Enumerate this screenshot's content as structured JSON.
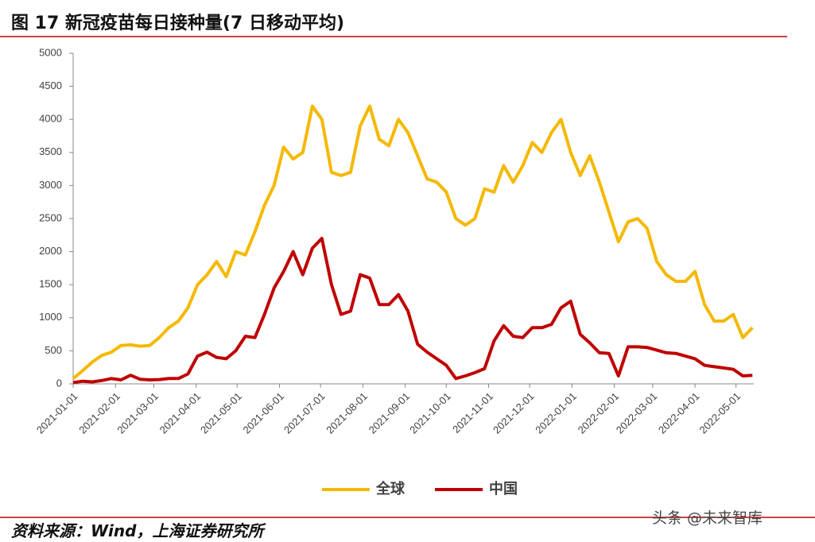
{
  "chart_data": {
    "type": "line",
    "title": "图 17 新冠疫苗每日接种量(7 日移动平均)",
    "source": "资料来源：Wind，上海证券研究所",
    "watermark": "头条 @未来智库",
    "x": [
      "2021-01-01",
      "2021-01-08",
      "2021-01-15",
      "2021-01-22",
      "2021-01-29",
      "2021-02-05",
      "2021-02-12",
      "2021-02-19",
      "2021-02-26",
      "2021-03-05",
      "2021-03-12",
      "2021-03-19",
      "2021-03-26",
      "2021-04-02",
      "2021-04-09",
      "2021-04-16",
      "2021-04-23",
      "2021-04-30",
      "2021-05-07",
      "2021-05-14",
      "2021-05-21",
      "2021-05-28",
      "2021-06-04",
      "2021-06-11",
      "2021-06-18",
      "2021-06-25",
      "2021-07-02",
      "2021-07-09",
      "2021-07-16",
      "2021-07-23",
      "2021-07-30",
      "2021-08-06",
      "2021-08-13",
      "2021-08-20",
      "2021-08-27",
      "2021-09-03",
      "2021-09-10",
      "2021-09-17",
      "2021-09-24",
      "2021-10-01",
      "2021-10-08",
      "2021-10-15",
      "2021-10-22",
      "2021-10-29",
      "2021-11-05",
      "2021-11-12",
      "2021-11-19",
      "2021-11-26",
      "2021-12-03",
      "2021-12-10",
      "2021-12-17",
      "2021-12-24",
      "2021-12-31",
      "2022-01-07",
      "2022-01-14",
      "2022-01-21",
      "2022-01-28",
      "2022-02-04",
      "2022-02-11",
      "2022-02-18",
      "2022-02-25",
      "2022-03-04",
      "2022-03-11",
      "2022-03-18",
      "2022-03-25",
      "2022-04-01",
      "2022-04-08",
      "2022-04-15",
      "2022-04-22",
      "2022-04-29",
      "2022-05-06",
      "2022-05-13"
    ],
    "series": [
      {
        "name": "全球",
        "color": "#f5b800",
        "values": [
          80,
          200,
          330,
          430,
          480,
          580,
          590,
          570,
          580,
          700,
          850,
          950,
          1150,
          1500,
          1650,
          1850,
          1620,
          2000,
          1950,
          2300,
          2700,
          3000,
          3580,
          3400,
          3500,
          4200,
          4000,
          3200,
          3150,
          3200,
          3900,
          4200,
          3700,
          3600,
          4000,
          3800,
          3450,
          3100,
          3050,
          2900,
          2500,
          2400,
          2500,
          2950,
          2900,
          3300,
          3050,
          3300,
          3650,
          3500,
          3800,
          4000,
          3500,
          3150,
          3450,
          3050,
          2600,
          2150,
          2450,
          2500,
          2350,
          1850,
          1650,
          1550,
          1550,
          1700,
          1200,
          950,
          950,
          1050,
          700,
          850
        ]
      },
      {
        "name": "中国",
        "color": "#c00000",
        "values": [
          20,
          40,
          30,
          50,
          80,
          60,
          130,
          70,
          60,
          65,
          80,
          80,
          150,
          420,
          480,
          400,
          380,
          500,
          720,
          700,
          1050,
          1450,
          1700,
          2000,
          1650,
          2050,
          2200,
          1500,
          1050,
          1100,
          1650,
          1600,
          1200,
          1200,
          1350,
          1100,
          600,
          480,
          380,
          280,
          80,
          120,
          170,
          230,
          650,
          880,
          720,
          700,
          850,
          850,
          900,
          1150,
          1250,
          750,
          620,
          470,
          460,
          120,
          560,
          560,
          550,
          510,
          470,
          460,
          420,
          380,
          280,
          260,
          240,
          220,
          120,
          130
        ]
      }
    ],
    "xlim": [
      "2021-01-01",
      "2022-05-14"
    ],
    "xticks": [
      "2021-01-01",
      "2021-02-01",
      "2021-03-01",
      "2021-04-01",
      "2021-05-01",
      "2021-06-01",
      "2021-07-01",
      "2021-08-01",
      "2021-09-01",
      "2021-10-01",
      "2021-11-01",
      "2021-12-01",
      "2022-01-01",
      "2022-02-01",
      "2022-03-01",
      "2022-04-01",
      "2022-05-01"
    ],
    "ylim": [
      0,
      5000
    ],
    "yticks": [
      0,
      500,
      1000,
      1500,
      2000,
      2500,
      3000,
      3500,
      4000,
      4500,
      5000
    ],
    "grid": false,
    "legend": "bottom"
  }
}
